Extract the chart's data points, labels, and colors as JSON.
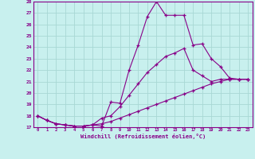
{
  "xlabel": "Windchill (Refroidissement éolien,°C)",
  "bg_color": "#c8f0ee",
  "grid_color": "#a8d8d4",
  "line_color": "#880088",
  "xlim": [
    -0.5,
    23.5
  ],
  "ylim": [
    17,
    28
  ],
  "xticks": [
    0,
    1,
    2,
    3,
    4,
    5,
    6,
    7,
    8,
    9,
    10,
    11,
    12,
    13,
    14,
    15,
    16,
    17,
    18,
    19,
    20,
    21,
    22,
    23
  ],
  "yticks": [
    17,
    18,
    19,
    20,
    21,
    22,
    23,
    24,
    25,
    26,
    27,
    28
  ],
  "line1_x": [
    0,
    1,
    2,
    3,
    4,
    5,
    6,
    7,
    8,
    9,
    10,
    11,
    12,
    13,
    14,
    15,
    16,
    17,
    18,
    19,
    20,
    21,
    22,
    23
  ],
  "line1_y": [
    18.0,
    17.6,
    17.3,
    17.2,
    17.1,
    17.1,
    17.2,
    17.1,
    19.2,
    19.1,
    22.0,
    24.2,
    26.7,
    28.0,
    26.8,
    26.8,
    26.8,
    24.2,
    24.3,
    23.0,
    22.3,
    21.3,
    21.2,
    21.2
  ],
  "line2_x": [
    0,
    1,
    2,
    3,
    4,
    5,
    6,
    7,
    8,
    9,
    10,
    11,
    12,
    13,
    14,
    15,
    16,
    17,
    18,
    19,
    20,
    21,
    22,
    23
  ],
  "line2_y": [
    18.0,
    17.6,
    17.3,
    17.2,
    17.1,
    17.1,
    17.2,
    17.8,
    18.0,
    18.8,
    19.8,
    20.8,
    21.8,
    22.5,
    23.2,
    23.5,
    23.9,
    22.0,
    21.5,
    21.0,
    21.2,
    21.2,
    21.2,
    21.2
  ],
  "line3_x": [
    0,
    1,
    2,
    3,
    4,
    5,
    6,
    7,
    8,
    9,
    10,
    11,
    12,
    13,
    14,
    15,
    16,
    17,
    18,
    19,
    20,
    21,
    22,
    23
  ],
  "line3_y": [
    18.0,
    17.6,
    17.3,
    17.2,
    17.1,
    17.1,
    17.2,
    17.3,
    17.5,
    17.8,
    18.1,
    18.4,
    18.7,
    19.0,
    19.3,
    19.6,
    19.9,
    20.2,
    20.5,
    20.8,
    21.0,
    21.2,
    21.2,
    21.2
  ]
}
